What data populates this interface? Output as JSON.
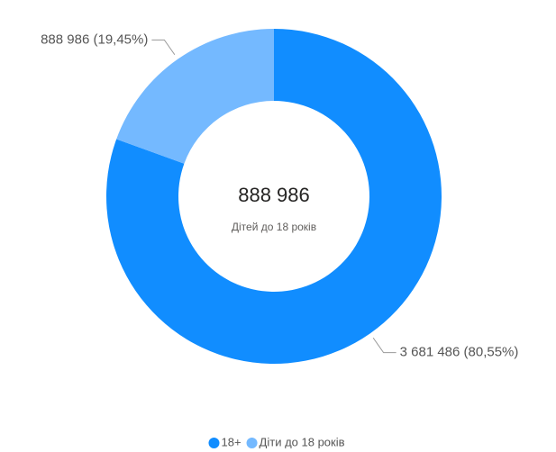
{
  "chart_data": {
    "type": "donut",
    "categories": [
      "18+",
      "Діти до 18 років"
    ],
    "values": [
      3681486,
      888986
    ],
    "value_labels": [
      "3 681 486 (80,55%)",
      "888 986 (19,45%)"
    ],
    "colors": [
      "#118dff",
      "#74b9ff"
    ],
    "center_text": "888 986",
    "center_subtitle": "Дітей до 18 років",
    "legend": "bottom"
  }
}
